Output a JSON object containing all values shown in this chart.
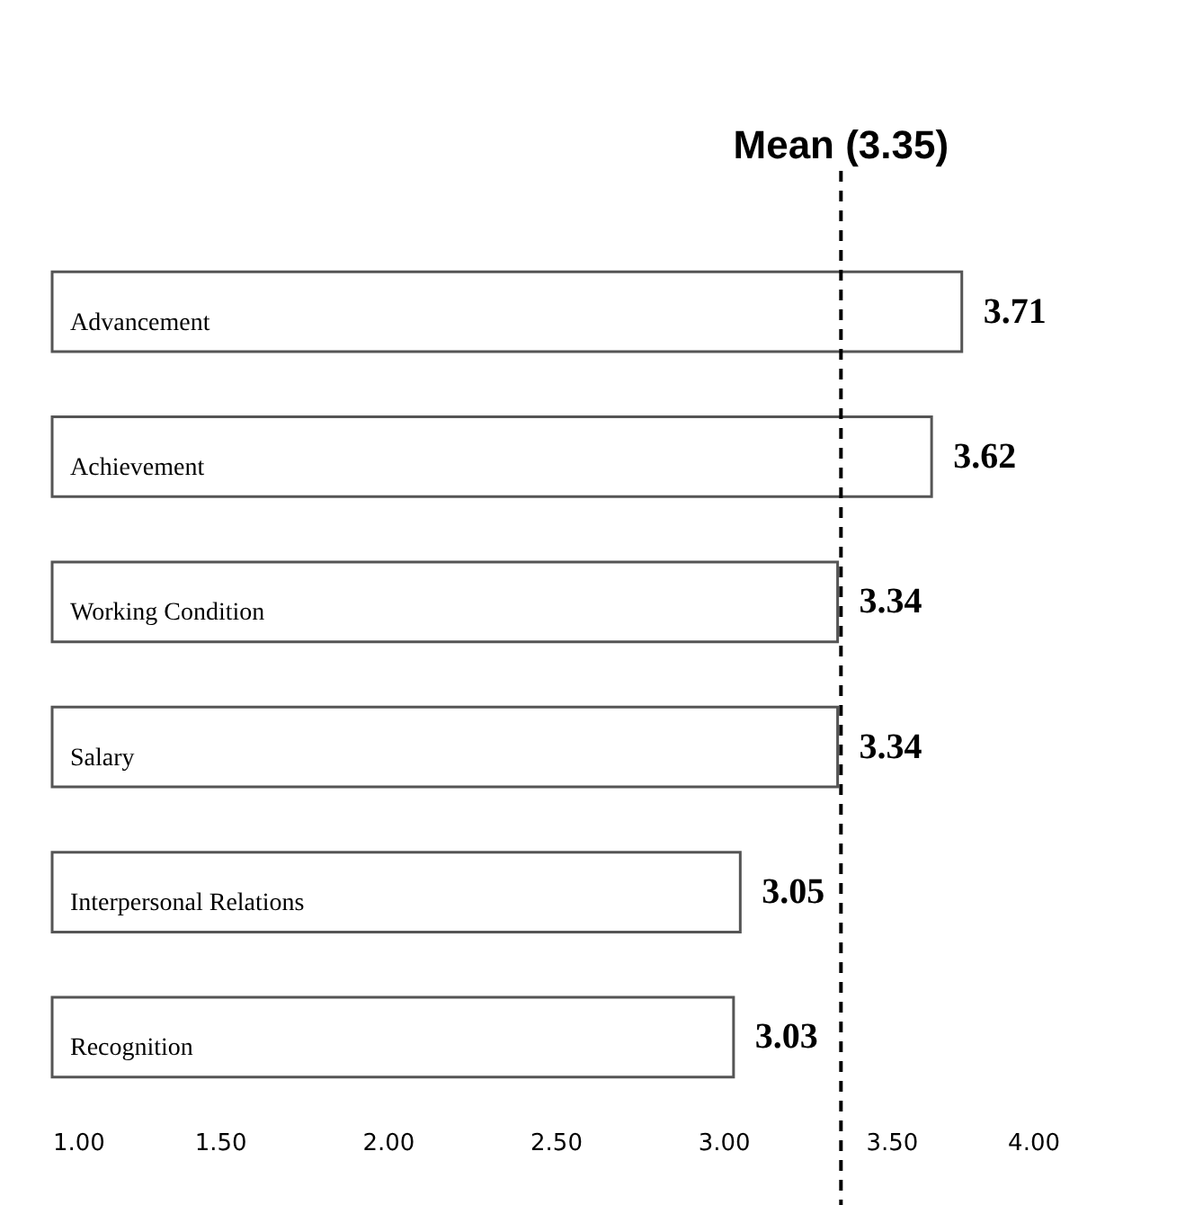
{
  "chart_data": {
    "type": "bar",
    "orientation": "horizontal",
    "categories": [
      "Advancement",
      "Achievement",
      "Working Condition",
      "Salary",
      "Interpersonal Relations",
      "Recognition"
    ],
    "values": [
      3.71,
      3.62,
      3.34,
      3.34,
      3.05,
      3.03
    ],
    "color": "#ffffff",
    "xlim": [
      1,
      4
    ],
    "xticks": [
      {
        "value": 1,
        "label": "1.00"
      },
      {
        "value": 1.5,
        "label": "1.50"
      },
      {
        "value": 2,
        "label": "2.00"
      },
      {
        "value": 2.5,
        "label": "2.50"
      },
      {
        "value": 3,
        "label": "3.00"
      },
      {
        "value": 3.5,
        "label": "3.50"
      },
      {
        "value": 4,
        "label": "4.00"
      }
    ],
    "data_labels": true,
    "grid": false,
    "ref_lines": [
      {
        "axis": "x",
        "value": 3.35,
        "label": "Mean (3.35)",
        "line_style": "dashed",
        "color": "#000000"
      }
    ]
  }
}
